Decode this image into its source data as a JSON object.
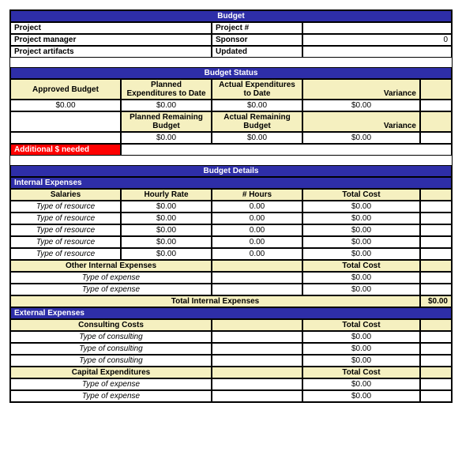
{
  "colors": {
    "blue_header": "#2e2ea8",
    "yellow_header": "#f5f0c0",
    "red_header": "#ff0000",
    "border": "#000000",
    "background": "#ffffff"
  },
  "budget": {
    "title": "Budget",
    "labels": {
      "project": "Project",
      "project_num": "Project #",
      "project_manager": "Project manager",
      "sponsor": "Sponsor",
      "project_artifacts": "Project artifacts",
      "updated": "Updated"
    },
    "values": {
      "project": "",
      "project_num": "",
      "project_manager": "",
      "sponsor": "0",
      "project_artifacts": "",
      "updated": ""
    }
  },
  "budget_status": {
    "title": "Budget Status",
    "headers": {
      "approved_budget": "Approved Budget",
      "planned_expend": "Planned Expenditures to Date",
      "actual_expend": "Actual Expenditures to Date",
      "variance": "Variance",
      "planned_remaining": "Planned Remaining Budget",
      "actual_remaining": "Actual Remaining Budget"
    },
    "row1": {
      "approved": "$0.00",
      "planned": "$0.00",
      "actual": "$0.00",
      "variance": "$0.00"
    },
    "row2": {
      "planned": "$0.00",
      "actual": "$0.00",
      "variance": "$0.00"
    },
    "additional_label": "Additional $ needed"
  },
  "budget_details": {
    "title": "Budget Details",
    "internal_expenses_label": "Internal Expenses",
    "salaries": {
      "title": "Salaries",
      "col_rate": "Hourly Rate",
      "col_hours": "# Hours",
      "col_total": "Total Cost",
      "rows": [
        {
          "name": "Type of resource",
          "rate": "$0.00",
          "hours": "0.00",
          "total": "$0.00"
        },
        {
          "name": "Type of resource",
          "rate": "$0.00",
          "hours": "0.00",
          "total": "$0.00"
        },
        {
          "name": "Type of resource",
          "rate": "$0.00",
          "hours": "0.00",
          "total": "$0.00"
        },
        {
          "name": "Type of resource",
          "rate": "$0.00",
          "hours": "0.00",
          "total": "$0.00"
        },
        {
          "name": "Type of resource",
          "rate": "$0.00",
          "hours": "0.00",
          "total": "$0.00"
        }
      ]
    },
    "other_internal": {
      "title": "Other Internal Expenses",
      "col_total": "Total Cost",
      "rows": [
        {
          "name": "Type of expense",
          "total": "$0.00"
        },
        {
          "name": "Type of expense",
          "total": "$0.00"
        }
      ]
    },
    "total_internal_label": "Total Internal Expenses",
    "total_internal_value": "$0.00",
    "external_expenses_label": "External Expenses",
    "consulting": {
      "title": "Consulting Costs",
      "col_total": "Total Cost",
      "rows": [
        {
          "name": "Type of consulting",
          "total": "$0.00"
        },
        {
          "name": "Type of consulting",
          "total": "$0.00"
        },
        {
          "name": "Type of consulting",
          "total": "$0.00"
        }
      ]
    },
    "capital": {
      "title": "Capital Expenditures",
      "col_total": "Total Cost",
      "rows": [
        {
          "name": "Type of expense",
          "total": "$0.00"
        },
        {
          "name": "Type of expense",
          "total": "$0.00"
        }
      ]
    }
  }
}
